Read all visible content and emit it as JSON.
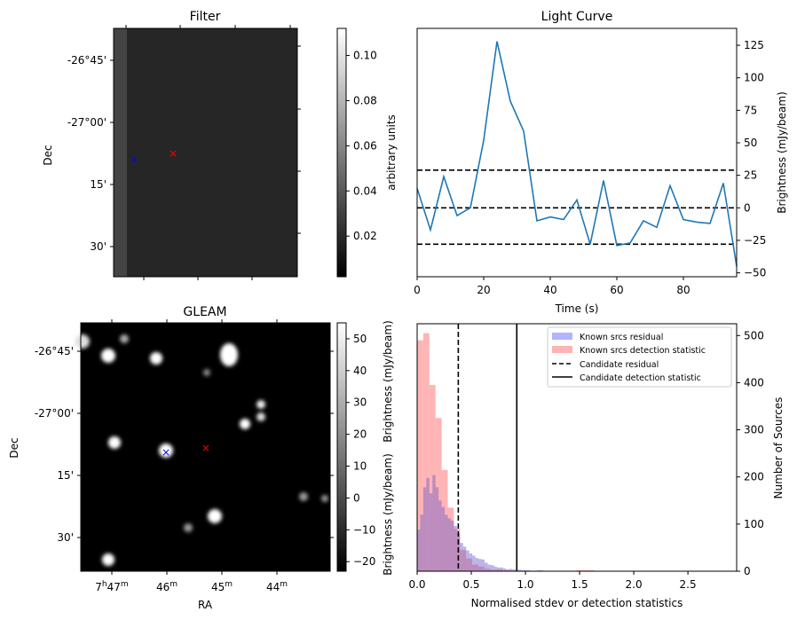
{
  "chart_data": [
    {
      "type": "heatmap",
      "title": "Filter",
      "ylabel": "Dec",
      "xlabel": "",
      "yticks": [
        "-26°45'",
        "-27°00'",
        "15'",
        "30'"
      ],
      "colorbar": {
        "label": "arbitrary units",
        "ticks": [
          "0.02",
          "0.04",
          "0.06",
          "0.08",
          "0.10"
        ],
        "range": [
          0.002,
          0.112
        ],
        "colormap": "gray"
      },
      "markers": [
        {
          "name": "blue-cross",
          "color": "#0000ff",
          "symbol": "×"
        },
        {
          "name": "red-cross",
          "color": "#ff0000",
          "symbol": "×"
        }
      ]
    },
    {
      "type": "line",
      "title": "Light Curve",
      "xlabel": "Time (s)",
      "ylabel": "Brightness (mJy/beam)",
      "xlim": [
        0,
        96
      ],
      "ylim": [
        -53,
        138
      ],
      "xticks": [
        "0",
        "20",
        "40",
        "60",
        "80"
      ],
      "yticks": [
        "125",
        "100",
        "75",
        "50",
        "25",
        "0",
        "−25",
        "−50"
      ],
      "series": [
        {
          "name": "light curve",
          "color": "#1f77b4",
          "x": [
            0,
            4,
            8,
            12,
            16,
            20,
            24,
            28,
            32,
            36,
            40,
            44,
            48,
            52,
            56,
            60,
            64,
            68,
            72,
            76,
            80,
            84,
            88,
            92,
            96
          ],
          "values": [
            15,
            -17,
            24,
            -6,
            0,
            52,
            128,
            82,
            59,
            -10,
            -7,
            -9,
            6,
            -28,
            21,
            -29,
            -27,
            -10,
            -15,
            17,
            -9,
            -11,
            -12,
            19,
            -45
          ]
        }
      ],
      "hlines": [
        {
          "y": 29,
          "style": "dashed",
          "color": "#000000"
        },
        {
          "y": 0,
          "style": "dashed",
          "color": "#000000"
        },
        {
          "y": -28,
          "style": "dashed",
          "color": "#000000"
        }
      ]
    },
    {
      "type": "heatmap",
      "title": "GLEAM",
      "xlabel": "RA",
      "ylabel": "Dec",
      "xticks": [
        {
          "main": "7",
          "sup1": "h",
          "main2": "47",
          "sup2": "m"
        },
        {
          "main": "46",
          "sup": "m"
        },
        {
          "main": "45",
          "sup": "m"
        },
        {
          "main": "44",
          "sup": "m"
        }
      ],
      "yticks": [
        "-26°45'",
        "-27°00'",
        "15'",
        "30'"
      ],
      "colorbar": {
        "label": "Brightness (mJy/beam)",
        "ticks": [
          "50",
          "40",
          "30",
          "20",
          "10",
          "0",
          "−10",
          "−20"
        ],
        "range": [
          -23,
          55
        ],
        "colormap": "gray"
      },
      "markers": [
        {
          "name": "blue-cross",
          "color": "#0000ff",
          "symbol": "×"
        },
        {
          "name": "red-cross",
          "color": "#ff0000",
          "symbol": "×"
        }
      ]
    },
    {
      "type": "bar",
      "subtype": "histogram",
      "title": "",
      "xlabel": "Normalised stdev or detection statistics",
      "ylabel_left": "Brightness (mJy/beam)",
      "ylabel": "Number of Sources",
      "xlim": [
        0,
        2.95
      ],
      "ylim": [
        0,
        525
      ],
      "xticks": [
        "0.0",
        "0.5",
        "1.0",
        "1.5",
        "2.0",
        "2.5"
      ],
      "yticks": [
        "0",
        "100",
        "200",
        "300",
        "400",
        "500"
      ],
      "bin_width": 0.0565,
      "series": [
        {
          "name": "Known srcs residual",
          "color": "#b3b3ff",
          "bin_width": 0.0283,
          "x_start": 0,
          "values": [
            88,
            120,
            178,
            198,
            165,
            204,
            178,
            150,
            136,
            120,
            112,
            107,
            96,
            80,
            60,
            52,
            44,
            38,
            33,
            28,
            26,
            25,
            18,
            14,
            13,
            10,
            8,
            8,
            6,
            4,
            5,
            4,
            3,
            3,
            2,
            2,
            2,
            1,
            1,
            2,
            2,
            1,
            1,
            1,
            1,
            0,
            0,
            0,
            1,
            1,
            0
          ]
        },
        {
          "name": "Known srcs detection statistic",
          "color": "#ffb3b3",
          "bin_width": 0.0565,
          "x_start": 0,
          "values": [
            490,
            505,
            395,
            325,
            215,
            135,
            90,
            45,
            27,
            14,
            10,
            5,
            3,
            4,
            2,
            1,
            0,
            0,
            0,
            0,
            0,
            0,
            0,
            0,
            0,
            0,
            2,
            2,
            2,
            0,
            0,
            0,
            0,
            0,
            0,
            0,
            0,
            0,
            0,
            0,
            0,
            0,
            0,
            0,
            1,
            0,
            0,
            0,
            0,
            1,
            0
          ]
        }
      ],
      "vlines": [
        {
          "name": "Candidate residual",
          "x": 0.38,
          "style": "dashed",
          "color": "#000000"
        },
        {
          "name": "Candidate detection statistic",
          "x": 0.92,
          "style": "solid",
          "color": "#000000"
        }
      ],
      "legend": {
        "position": "top-right",
        "entries": [
          "Known srcs residual",
          "Known srcs detection statistic",
          "Candidate residual",
          "Candidate detection statistic"
        ]
      }
    }
  ]
}
